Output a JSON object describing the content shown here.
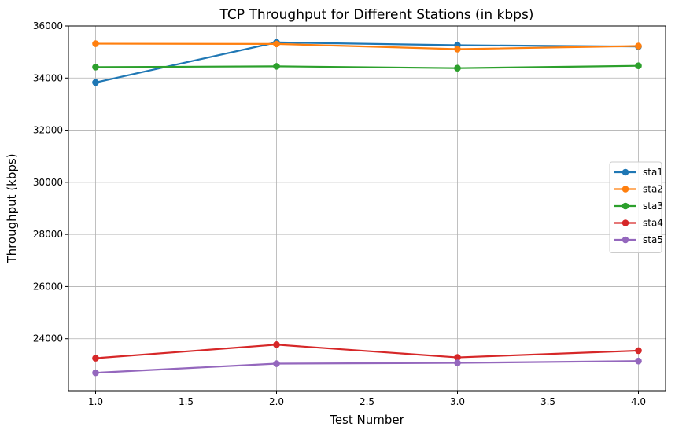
{
  "chart_data": {
    "type": "line",
    "title": "TCP Throughput for Different Stations (in kbps)",
    "xlabel": "Test Number",
    "ylabel": "Throughput (kbps)",
    "xlim": [
      0.85,
      4.15
    ],
    "ylim": [
      22000,
      36000
    ],
    "xticks": [
      1.0,
      1.5,
      2.0,
      2.5,
      3.0,
      3.5,
      4.0
    ],
    "xtick_labels": [
      "1.0",
      "1.5",
      "2.0",
      "2.5",
      "3.0",
      "3.5",
      "4.0"
    ],
    "yticks": [
      24000,
      26000,
      28000,
      30000,
      32000,
      34000,
      36000
    ],
    "ytick_labels": [
      "24000",
      "26000",
      "28000",
      "30000",
      "32000",
      "34000",
      "36000"
    ],
    "grid": true,
    "legend_position": "center-right",
    "x": [
      1,
      2,
      3,
      4
    ],
    "series": [
      {
        "name": "sta1",
        "color": "#1f77b4",
        "values": [
          33830,
          35370,
          35260,
          35210
        ]
      },
      {
        "name": "sta2",
        "color": "#ff7f0e",
        "values": [
          35320,
          35310,
          35110,
          35230
        ]
      },
      {
        "name": "sta3",
        "color": "#2ca02c",
        "values": [
          34420,
          34450,
          34380,
          34470
        ]
      },
      {
        "name": "sta4",
        "color": "#d62728",
        "values": [
          23250,
          23770,
          23280,
          23540
        ]
      },
      {
        "name": "sta5",
        "color": "#9467bd",
        "values": [
          22690,
          23040,
          23070,
          23140
        ]
      }
    ]
  }
}
